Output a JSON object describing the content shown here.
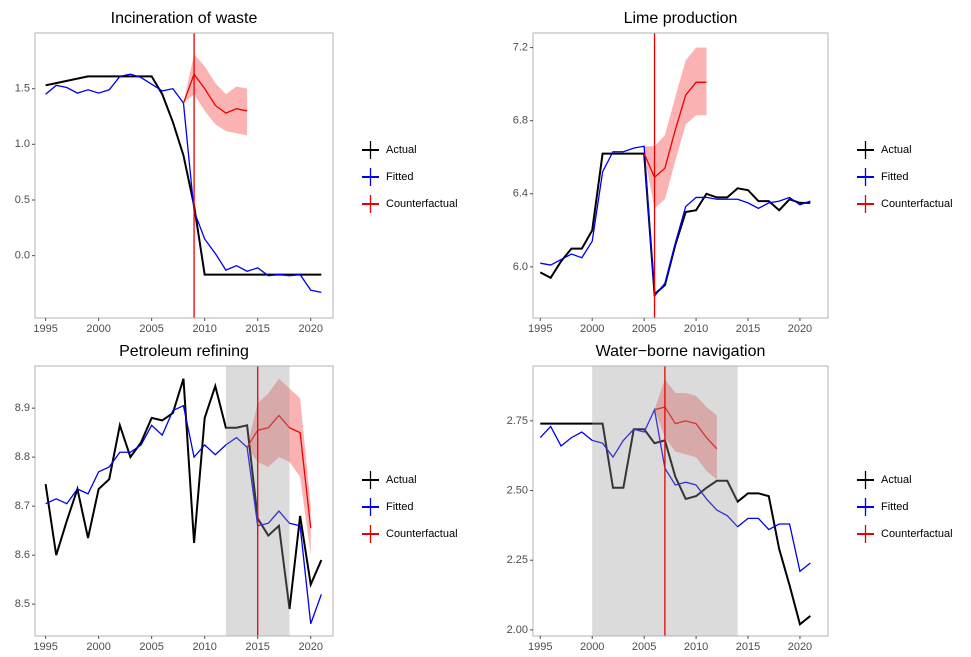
{
  "chart_data": [
    {
      "type": "line",
      "title": "Incineration of waste",
      "x": [
        1995,
        1996,
        1997,
        1998,
        1999,
        2000,
        2001,
        2002,
        2003,
        2004,
        2005,
        2006,
        2007,
        2008,
        2009,
        2010,
        2011,
        2012,
        2013,
        2014,
        2015,
        2016,
        2017,
        2018,
        2019,
        2020,
        2021
      ],
      "xlim": [
        1994,
        2022.1
      ],
      "xticks": [
        1995,
        2000,
        2005,
        2010,
        2015,
        2020
      ],
      "ylim": [
        -0.56,
        2.0
      ],
      "yticks": [
        {
          "value": 0,
          "label": "0.0"
        },
        0.5,
        {
          "value": 1,
          "label": "1.0"
        },
        1.5
      ],
      "event": 2009,
      "series": [
        {
          "name": "Actual",
          "color": "#000000",
          "values": [
            1.53,
            1.55,
            1.57,
            1.59,
            1.61,
            1.61,
            1.61,
            1.61,
            1.61,
            1.61,
            1.61,
            1.45,
            1.2,
            0.9,
            0.45,
            -0.17,
            -0.17,
            -0.17,
            -0.17,
            -0.17,
            -0.17,
            -0.17,
            -0.17,
            -0.17,
            -0.17,
            -0.17,
            -0.17
          ]
        },
        {
          "name": "Fitted",
          "color": "#0000ee",
          "values": [
            1.45,
            1.53,
            1.51,
            1.46,
            1.49,
            1.46,
            1.49,
            1.61,
            1.63,
            1.6,
            1.54,
            1.48,
            1.5,
            1.37,
            0.4,
            0.15,
            0.02,
            -0.13,
            -0.09,
            -0.14,
            -0.11,
            -0.18,
            -0.17,
            -0.18,
            -0.17,
            -0.31,
            -0.33
          ]
        },
        {
          "name": "Counterfactual",
          "color": "#ee0000",
          "values": [
            null,
            null,
            null,
            null,
            null,
            null,
            null,
            null,
            null,
            null,
            null,
            null,
            null,
            1.37,
            1.63,
            1.5,
            1.35,
            1.28,
            1.32,
            1.3,
            null,
            null,
            null,
            null,
            null,
            null,
            null
          ],
          "lower": [
            null,
            null,
            null,
            null,
            null,
            null,
            null,
            null,
            null,
            null,
            null,
            null,
            null,
            1.37,
            1.45,
            1.3,
            1.18,
            1.12,
            1.1,
            1.08,
            null,
            null,
            null,
            null,
            null,
            null,
            null
          ],
          "upper": [
            null,
            null,
            null,
            null,
            null,
            null,
            null,
            null,
            null,
            null,
            null,
            null,
            null,
            1.37,
            1.81,
            1.7,
            1.55,
            1.45,
            1.52,
            1.5,
            null,
            null,
            null,
            null,
            null,
            null,
            null
          ]
        }
      ]
    },
    {
      "type": "line",
      "title": "Lime production",
      "x": [
        1995,
        1996,
        1997,
        1998,
        1999,
        2000,
        2001,
        2002,
        2003,
        2004,
        2005,
        2006,
        2007,
        2008,
        2009,
        2010,
        2011,
        2012,
        2013,
        2014,
        2015,
        2016,
        2017,
        2018,
        2019,
        2020,
        2021
      ],
      "xlim": [
        1994.3,
        2022.7
      ],
      "xticks": [
        1995,
        2000,
        2005,
        2010,
        2015,
        2020
      ],
      "ylim": [
        5.72,
        7.28
      ],
      "yticks": [
        {
          "value": 6,
          "label": "6.0"
        },
        6.4,
        6.8,
        7.2
      ],
      "event": 2006,
      "series": [
        {
          "name": "Actual",
          "color": "#000000",
          "values": [
            5.97,
            5.94,
            6.03,
            6.1,
            6.1,
            6.2,
            6.62,
            6.62,
            6.62,
            6.62,
            6.62,
            5.85,
            5.9,
            6.12,
            6.3,
            6.31,
            6.4,
            6.38,
            6.38,
            6.43,
            6.42,
            6.36,
            6.36,
            6.31,
            6.37,
            6.35,
            6.35
          ]
        },
        {
          "name": "Fitted",
          "color": "#0000ee",
          "values": [
            6.02,
            6.01,
            6.04,
            6.07,
            6.05,
            6.14,
            6.52,
            6.63,
            6.63,
            6.65,
            6.66,
            5.84,
            5.91,
            6.13,
            6.33,
            6.38,
            6.38,
            6.37,
            6.37,
            6.37,
            6.35,
            6.32,
            6.35,
            6.36,
            6.38,
            6.34,
            6.36
          ]
        },
        {
          "name": "Counterfactual",
          "color": "#ee0000",
          "values": [
            null,
            null,
            null,
            null,
            null,
            null,
            null,
            null,
            null,
            null,
            6.62,
            6.49,
            6.54,
            6.75,
            6.94,
            7.01,
            7.01,
            null,
            null,
            null,
            null,
            null,
            null,
            null,
            null,
            null,
            null
          ],
          "lower": [
            null,
            null,
            null,
            null,
            null,
            null,
            null,
            null,
            null,
            null,
            6.62,
            6.32,
            6.37,
            6.58,
            6.78,
            6.83,
            6.83,
            null,
            null,
            null,
            null,
            null,
            null,
            null,
            null,
            null,
            null
          ],
          "upper": [
            null,
            null,
            null,
            null,
            null,
            null,
            null,
            null,
            null,
            null,
            6.66,
            6.66,
            6.72,
            6.93,
            7.13,
            7.2,
            7.2,
            null,
            null,
            null,
            null,
            null,
            null,
            null,
            null,
            null,
            null
          ]
        }
      ]
    },
    {
      "type": "line",
      "title": "Petroleum refining",
      "x": [
        1995,
        1996,
        1997,
        1998,
        1999,
        2000,
        2001,
        2002,
        2003,
        2004,
        2005,
        2006,
        2007,
        2008,
        2009,
        2010,
        2011,
        2012,
        2013,
        2014,
        2015,
        2016,
        2017,
        2018,
        2019,
        2020,
        2021
      ],
      "xlim": [
        1994,
        2022.1
      ],
      "xticks": [
        1995,
        2000,
        2005,
        2010,
        2015,
        2020
      ],
      "ylim": [
        8.435,
        8.986
      ],
      "yticks": [
        8.5,
        8.6,
        8.7,
        8.8,
        8.9
      ],
      "event": 2015,
      "shade": [
        2012,
        2018
      ],
      "series": [
        {
          "name": "Actual",
          "color": "#000000",
          "values": [
            8.745,
            8.6,
            8.67,
            8.735,
            8.635,
            8.735,
            8.755,
            8.865,
            8.8,
            8.83,
            8.88,
            8.875,
            8.89,
            8.96,
            8.625,
            8.88,
            8.945,
            8.86,
            8.86,
            8.865,
            8.675,
            8.64,
            8.66,
            8.49,
            8.68,
            8.54,
            8.59
          ]
        },
        {
          "name": "Fitted",
          "color": "#0000ee",
          "values": [
            8.705,
            8.715,
            8.705,
            8.735,
            8.725,
            8.77,
            8.78,
            8.81,
            8.81,
            8.825,
            8.865,
            8.845,
            8.895,
            8.905,
            8.8,
            8.825,
            8.805,
            8.825,
            8.84,
            8.82,
            8.66,
            8.665,
            8.69,
            8.665,
            8.66,
            8.46,
            8.52
          ]
        },
        {
          "name": "Counterfactual",
          "color": "#ee0000",
          "values": [
            null,
            null,
            null,
            null,
            null,
            null,
            null,
            null,
            null,
            null,
            null,
            null,
            null,
            null,
            null,
            null,
            null,
            null,
            null,
            8.82,
            8.855,
            8.86,
            8.885,
            8.86,
            8.85,
            8.655,
            null
          ],
          "lower": [
            null,
            null,
            null,
            null,
            null,
            null,
            null,
            null,
            null,
            null,
            null,
            null,
            null,
            null,
            null,
            null,
            null,
            null,
            null,
            8.82,
            8.79,
            8.78,
            8.8,
            8.79,
            8.76,
            8.6,
            null
          ],
          "upper": [
            null,
            null,
            null,
            null,
            null,
            null,
            null,
            null,
            null,
            null,
            null,
            null,
            null,
            null,
            null,
            null,
            null,
            null,
            null,
            8.82,
            8.91,
            8.93,
            8.96,
            8.94,
            8.92,
            8.7,
            null
          ]
        }
      ]
    },
    {
      "type": "line",
      "title": "Water−borne navigation",
      "x": [
        1995,
        1996,
        1997,
        1998,
        1999,
        2000,
        2001,
        2002,
        2003,
        2004,
        2005,
        2006,
        2007,
        2008,
        2009,
        2010,
        2011,
        2012,
        2013,
        2014,
        2015,
        2016,
        2017,
        2018,
        2019,
        2020,
        2021
      ],
      "xlim": [
        1994.3,
        2022.7
      ],
      "xticks": [
        1995,
        2000,
        2005,
        2010,
        2015,
        2020
      ],
      "ylim": [
        1.978,
        2.947
      ],
      "yticks": [
        {
          "value": 2,
          "label": "2.00"
        },
        2.25,
        {
          "value": 2.5,
          "label": "2.50"
        },
        2.75
      ],
      "event": 2007,
      "shade": [
        2000,
        2014
      ],
      "series": [
        {
          "name": "Actual",
          "color": "#000000",
          "values": [
            2.74,
            2.74,
            2.74,
            2.74,
            2.74,
            2.74,
            2.74,
            2.51,
            2.51,
            2.72,
            2.72,
            2.67,
            2.68,
            2.55,
            2.47,
            2.48,
            2.51,
            2.535,
            2.535,
            2.46,
            2.49,
            2.49,
            2.48,
            2.29,
            2.16,
            2.02,
            2.05
          ]
        },
        {
          "name": "Fitted",
          "color": "#0000ee",
          "values": [
            2.69,
            2.73,
            2.66,
            2.69,
            2.71,
            2.68,
            2.67,
            2.62,
            2.68,
            2.72,
            2.71,
            2.79,
            2.58,
            2.52,
            2.53,
            2.52,
            2.47,
            2.43,
            2.41,
            2.37,
            2.4,
            2.4,
            2.36,
            2.38,
            2.38,
            2.21,
            2.24
          ]
        },
        {
          "name": "Counterfactual",
          "color": "#ee0000",
          "values": [
            null,
            null,
            null,
            null,
            null,
            null,
            null,
            null,
            null,
            null,
            null,
            2.79,
            2.8,
            2.74,
            2.75,
            2.74,
            2.69,
            2.65,
            null,
            null,
            null,
            null,
            null,
            null,
            null,
            null,
            null
          ],
          "lower": [
            null,
            null,
            null,
            null,
            null,
            null,
            null,
            null,
            null,
            null,
            null,
            2.79,
            2.69,
            2.64,
            2.63,
            2.62,
            2.57,
            2.54,
            null,
            null,
            null,
            null,
            null,
            null,
            null,
            null,
            null
          ],
          "upper": [
            null,
            null,
            null,
            null,
            null,
            null,
            null,
            null,
            null,
            null,
            null,
            2.79,
            2.9,
            2.85,
            2.85,
            2.84,
            2.8,
            2.77,
            null,
            null,
            null,
            null,
            null,
            null,
            null,
            null,
            null
          ]
        }
      ]
    }
  ]
}
